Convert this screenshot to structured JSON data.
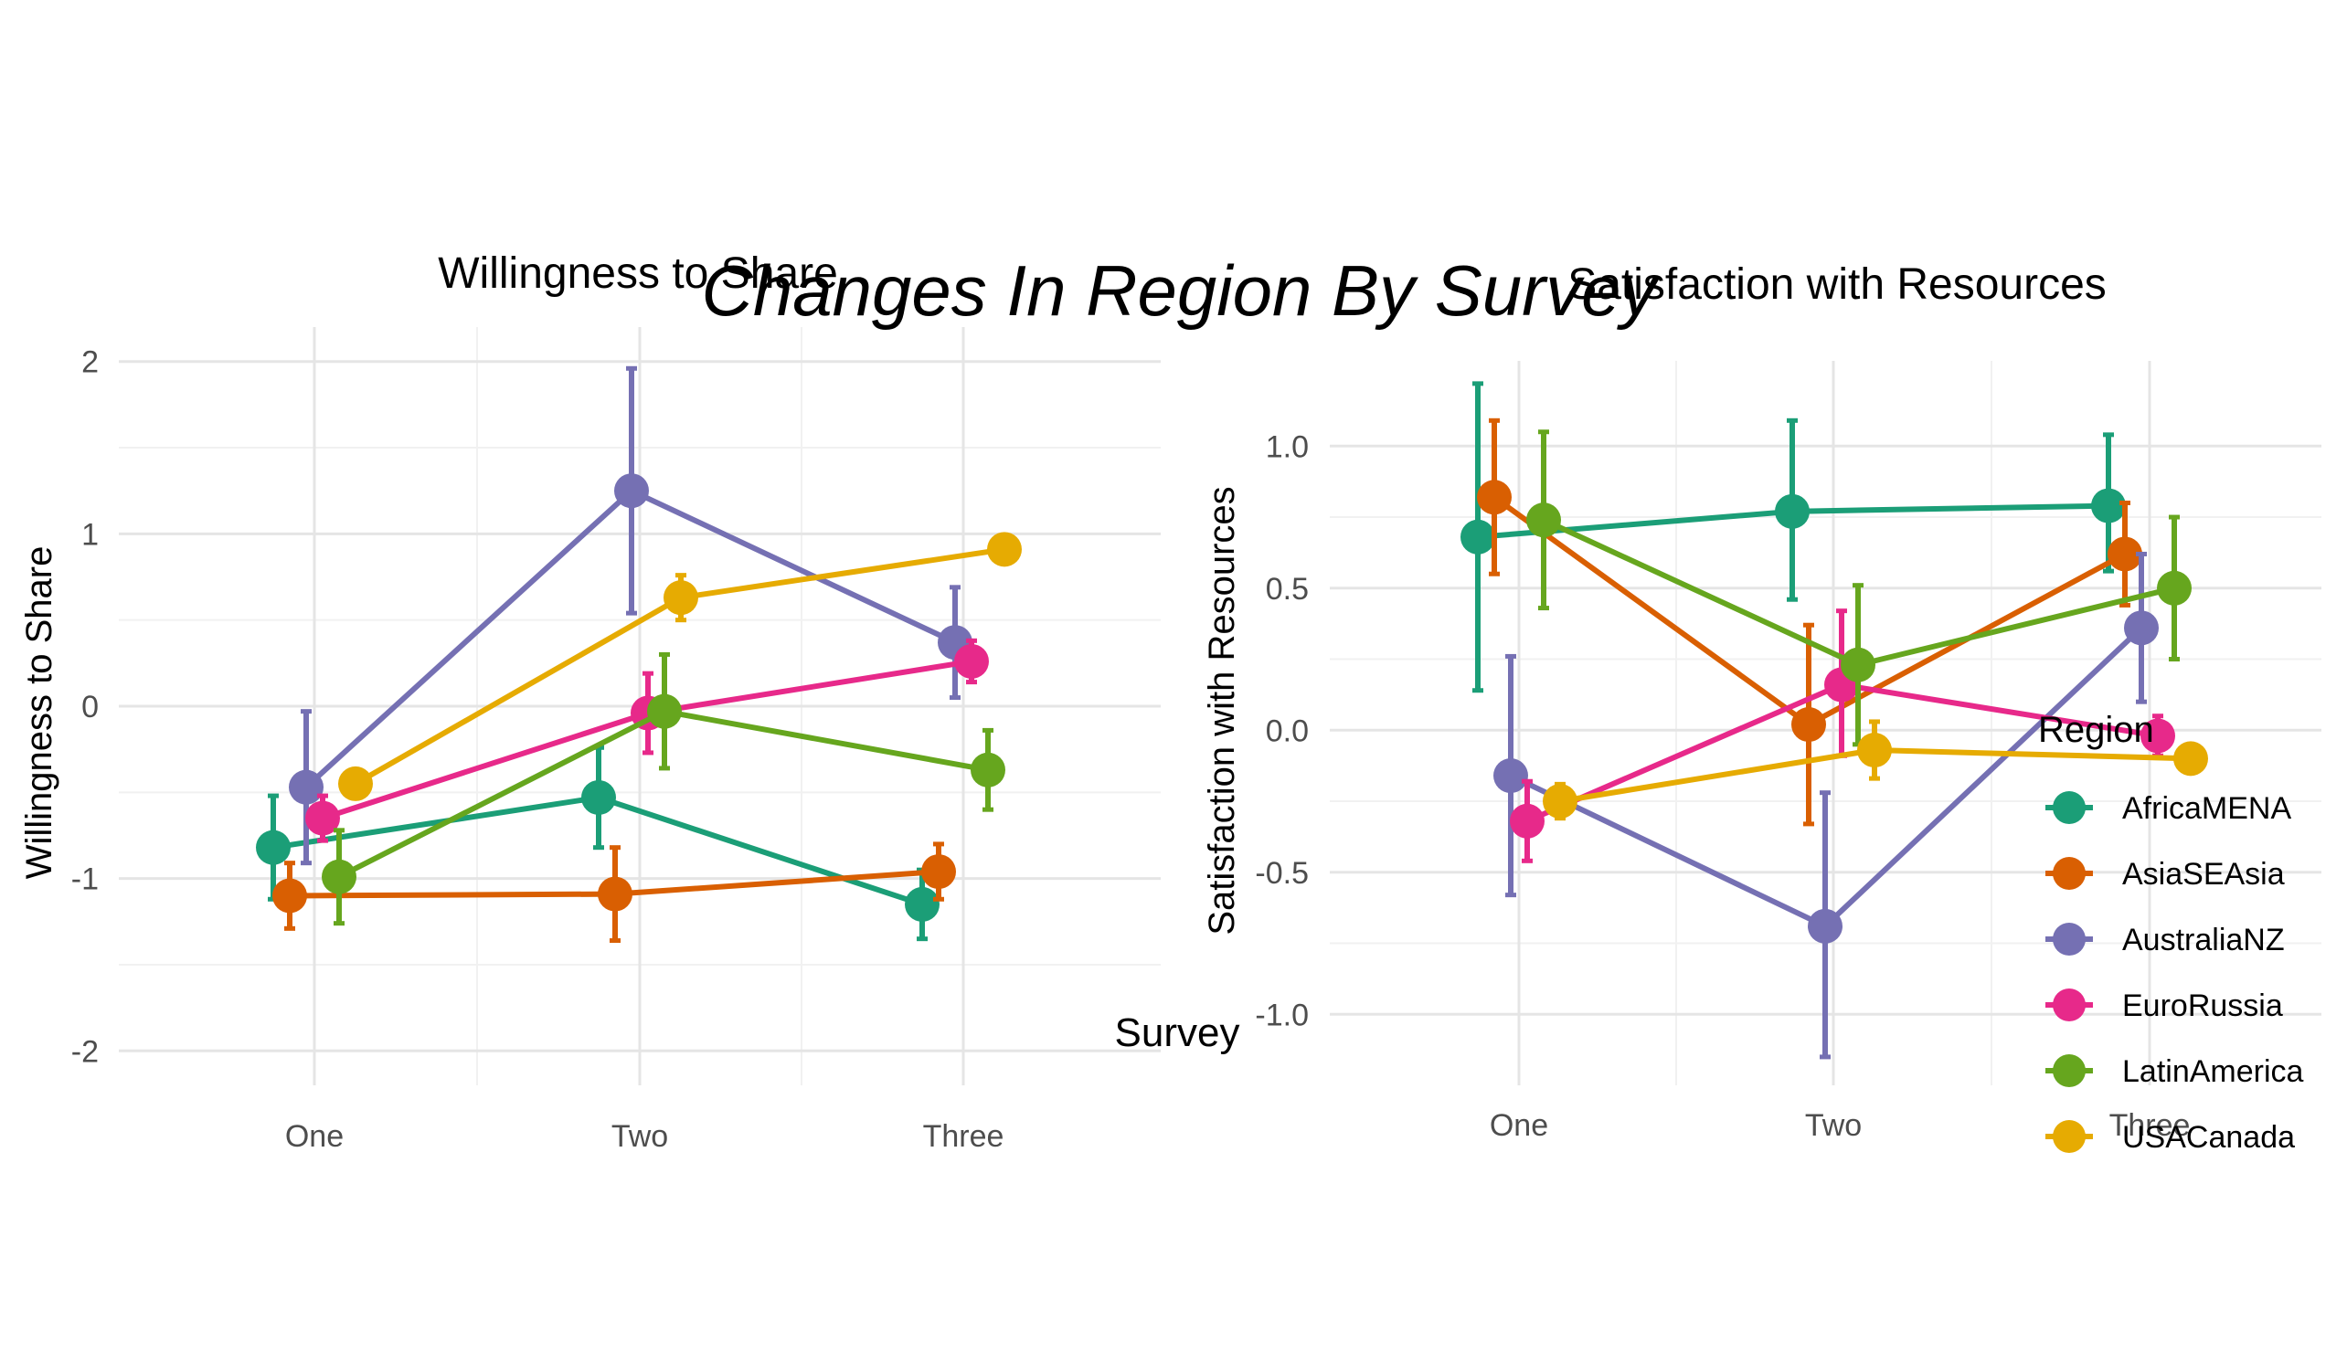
{
  "title": "Changes In Region By Survey",
  "shared_xlabel": "Survey",
  "legend": {
    "title": "Region",
    "items": [
      {
        "label": "AfricaMENA",
        "color": "#1B9E77"
      },
      {
        "label": "AsiaSEAsia",
        "color": "#D95F02"
      },
      {
        "label": "AustraliaNZ",
        "color": "#7570B3"
      },
      {
        "label": "EuroRussia",
        "color": "#E7298A"
      },
      {
        "label": "LatinAmerica",
        "color": "#66A61E"
      },
      {
        "label": "USACanada",
        "color": "#E6AB02"
      }
    ]
  },
  "chart_data": [
    {
      "type": "line",
      "title": "Willingness to Share",
      "ylabel": "Willingness to Share",
      "categories": [
        "One",
        "Two",
        "Three"
      ],
      "ylim": [
        -2.2,
        2.2
      ],
      "yticks": [
        -2,
        -1,
        0,
        1,
        2
      ],
      "ytick_labels": [
        "-2",
        "-1",
        "0",
        "1",
        "2"
      ],
      "grid": true,
      "series": [
        {
          "name": "AfricaMENA",
          "color": "#1B9E77",
          "values": [
            -0.82,
            -0.53,
            -1.15
          ],
          "lower": [
            -1.12,
            -0.82,
            -1.35
          ],
          "upper": [
            -0.52,
            -0.24,
            -0.95
          ]
        },
        {
          "name": "AsiaSEAsia",
          "color": "#D95F02",
          "values": [
            -1.1,
            -1.09,
            -0.96
          ],
          "lower": [
            -1.29,
            -1.36,
            -1.12
          ],
          "upper": [
            -0.91,
            -0.82,
            -0.8
          ]
        },
        {
          "name": "AustraliaNZ",
          "color": "#7570B3",
          "values": [
            -0.47,
            1.25,
            0.37
          ],
          "lower": [
            -0.91,
            0.54,
            0.05
          ],
          "upper": [
            -0.03,
            1.96,
            0.69
          ]
        },
        {
          "name": "EuroRussia",
          "color": "#E7298A",
          "values": [
            -0.65,
            -0.04,
            0.26
          ],
          "lower": [
            -0.78,
            -0.27,
            0.14
          ],
          "upper": [
            -0.52,
            0.19,
            0.38
          ]
        },
        {
          "name": "LatinAmerica",
          "color": "#66A61E",
          "values": [
            -0.99,
            -0.03,
            -0.37
          ],
          "lower": [
            -1.26,
            -0.36,
            -0.6
          ],
          "upper": [
            -0.72,
            0.3,
            -0.14
          ]
        },
        {
          "name": "USACanada",
          "color": "#E6AB02",
          "values": [
            -0.45,
            0.63,
            0.91
          ],
          "lower": [
            -0.45,
            0.5,
            0.84
          ],
          "upper": [
            -0.45,
            0.76,
            0.98
          ]
        }
      ]
    },
    {
      "type": "line",
      "title": "Satisfaction with Resources",
      "ylabel": "Satisfaction with Resources",
      "categories": [
        "One",
        "Two",
        "Three"
      ],
      "ylim": [
        -1.25,
        1.3
      ],
      "yticks": [
        -1.0,
        -0.5,
        0.0,
        0.5,
        1.0
      ],
      "ytick_labels": [
        "-1.0",
        "-0.5",
        "0.0",
        "0.5",
        "1.0"
      ],
      "grid": true,
      "series": [
        {
          "name": "AfricaMENA",
          "color": "#1B9E77",
          "values": [
            0.68,
            0.77,
            0.79
          ],
          "lower": [
            0.14,
            0.46,
            0.56
          ],
          "upper": [
            1.22,
            1.09,
            1.04
          ]
        },
        {
          "name": "AsiaSEAsia",
          "color": "#D95F02",
          "values": [
            0.82,
            0.02,
            0.62
          ],
          "lower": [
            0.55,
            -0.33,
            0.44
          ],
          "upper": [
            1.09,
            0.37,
            0.8
          ]
        },
        {
          "name": "AustraliaNZ",
          "color": "#7570B3",
          "values": [
            -0.16,
            -0.69,
            0.36
          ],
          "lower": [
            -0.58,
            -1.15,
            0.1
          ],
          "upper": [
            0.26,
            -0.22,
            0.62
          ]
        },
        {
          "name": "EuroRussia",
          "color": "#E7298A",
          "values": [
            -0.32,
            0.16,
            -0.02
          ],
          "lower": [
            -0.46,
            -0.09,
            -0.09
          ],
          "upper": [
            -0.18,
            0.42,
            0.05
          ]
        },
        {
          "name": "LatinAmerica",
          "color": "#66A61E",
          "values": [
            0.74,
            0.23,
            0.5
          ],
          "lower": [
            0.43,
            -0.05,
            0.25
          ],
          "upper": [
            1.05,
            0.51,
            0.75
          ]
        },
        {
          "name": "USACanada",
          "color": "#E6AB02",
          "values": [
            -0.25,
            -0.07,
            -0.1
          ],
          "lower": [
            -0.31,
            -0.17,
            -0.1
          ],
          "upper": [
            -0.19,
            0.03,
            -0.1
          ]
        }
      ]
    }
  ]
}
